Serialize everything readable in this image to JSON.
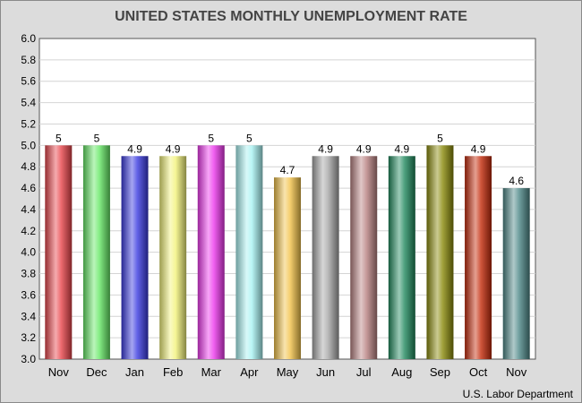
{
  "chart_data": {
    "type": "bar",
    "title": "UNITED STATES MONTHLY UNEMPLOYMENT RATE",
    "categories": [
      "Nov",
      "Dec",
      "Jan",
      "Feb",
      "Mar",
      "Apr",
      "May",
      "Jun",
      "Jul",
      "Aug",
      "Sep",
      "Oct",
      "Nov"
    ],
    "values": [
      5,
      5,
      4.9,
      4.9,
      5,
      5,
      4.7,
      4.9,
      4.9,
      4.9,
      5,
      4.9,
      4.6
    ],
    "value_labels": [
      "5",
      "5",
      "4.9",
      "4.9",
      "5",
      "5",
      "4.7",
      "4.9",
      "4.9",
      "4.9",
      "5",
      "4.9",
      "4.6"
    ],
    "colors": [
      "#e8454b",
      "#66e866",
      "#3a3ae0",
      "#f2f27a",
      "#ee38ee",
      "#a8f2f2",
      "#f2c24a",
      "#a6a6a6",
      "#b98282",
      "#218a5e",
      "#8a8a0a",
      "#c42a0a",
      "#4e8888"
    ],
    "ylim": [
      3.0,
      6.0
    ],
    "yticks": [
      "3.0",
      "3.2",
      "3.4",
      "3.6",
      "3.8",
      "4.0",
      "4.2",
      "4.4",
      "4.6",
      "4.8",
      "5.0",
      "5.2",
      "5.4",
      "5.6",
      "5.8",
      "6.0"
    ],
    "grid": true,
    "xlabel": "",
    "ylabel": "",
    "source": "U.S. Labor Department"
  }
}
